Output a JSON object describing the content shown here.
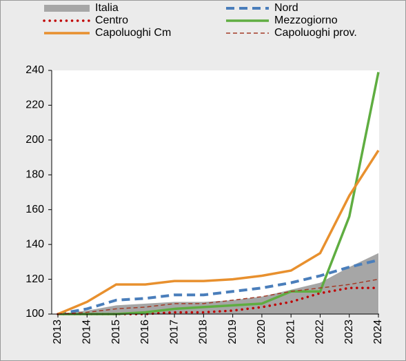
{
  "chart_data": {
    "type": "line",
    "categories": [
      "2013",
      "2014",
      "2015",
      "2016",
      "2017",
      "2018",
      "2019",
      "2020",
      "2021",
      "2022",
      "2023",
      "2024"
    ],
    "series": [
      {
        "name": "Italia",
        "color": "#a6a6a6",
        "style": "area",
        "values": [
          100,
          102,
          105,
          106,
          107,
          107,
          108,
          110,
          114,
          118,
          127,
          135
        ]
      },
      {
        "name": "Nord",
        "color": "#4a7ebb",
        "style": "dashed",
        "values": [
          100,
          103,
          108,
          109,
          111,
          111,
          113,
          115,
          118,
          122,
          127,
          131
        ]
      },
      {
        "name": "Centro",
        "color": "#c00000",
        "style": "dotted",
        "values": [
          100,
          100,
          100,
          100,
          101,
          101,
          102,
          104,
          107,
          112,
          115,
          115
        ]
      },
      {
        "name": "Mezzogiorno",
        "color": "#5fad41",
        "style": "solid",
        "values": [
          100,
          100,
          100,
          101,
          103,
          104,
          105,
          106,
          113,
          113,
          156,
          239
        ]
      },
      {
        "name": "Capoluoghi Cm",
        "color": "#e8902e",
        "style": "solid",
        "values": [
          100,
          107,
          117,
          117,
          119,
          119,
          120,
          122,
          125,
          135,
          168,
          194
        ]
      },
      {
        "name": "Capoluoghi prov.",
        "color": "#a33a26",
        "style": "thindash",
        "values": [
          100,
          101,
          103,
          104,
          106,
          106,
          108,
          110,
          113,
          115,
          117,
          120
        ]
      }
    ],
    "ylim": [
      100,
      240
    ],
    "yticks": [
      100,
      120,
      140,
      160,
      180,
      200,
      220,
      240
    ],
    "grid": false
  }
}
